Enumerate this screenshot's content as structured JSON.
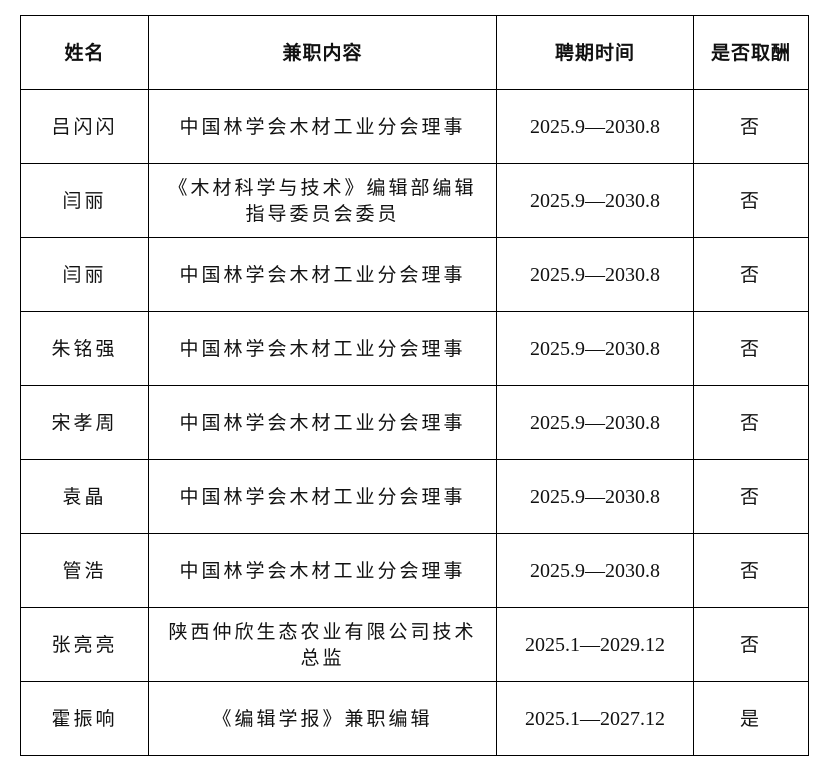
{
  "headers": [
    "姓名",
    "兼职内容",
    "聘期时间",
    "是否取酬"
  ],
  "rows": [
    {
      "name": "吕闪闪",
      "content": "中国林学会木材工业分会理事",
      "period": "2025.9—2030.8",
      "paid": "否"
    },
    {
      "name": "闫丽",
      "content": "《木材科学与技术》编辑部编辑指导委员会委员",
      "period": "2025.9—2030.8",
      "paid": "否"
    },
    {
      "name": "闫丽",
      "content": "中国林学会木材工业分会理事",
      "period": "2025.9—2030.8",
      "paid": "否"
    },
    {
      "name": "朱铭强",
      "content": "中国林学会木材工业分会理事",
      "period": "2025.9—2030.8",
      "paid": "否"
    },
    {
      "name": "宋孝周",
      "content": "中国林学会木材工业分会理事",
      "period": "2025.9—2030.8",
      "paid": "否"
    },
    {
      "name": "袁晶",
      "content": "中国林学会木材工业分会理事",
      "period": "2025.9—2030.8",
      "paid": "否"
    },
    {
      "name": "管浩",
      "content": "中国林学会木材工业分会理事",
      "period": "2025.9—2030.8",
      "paid": "否"
    },
    {
      "name": "张亮亮",
      "content": "陕西仲欣生态农业有限公司技术总监",
      "period": "2025.1—2029.12",
      "paid": "否"
    },
    {
      "name": "霍振响",
      "content": "《编辑学报》兼职编辑",
      "period": "2025.1—2027.12",
      "paid": "是"
    }
  ]
}
